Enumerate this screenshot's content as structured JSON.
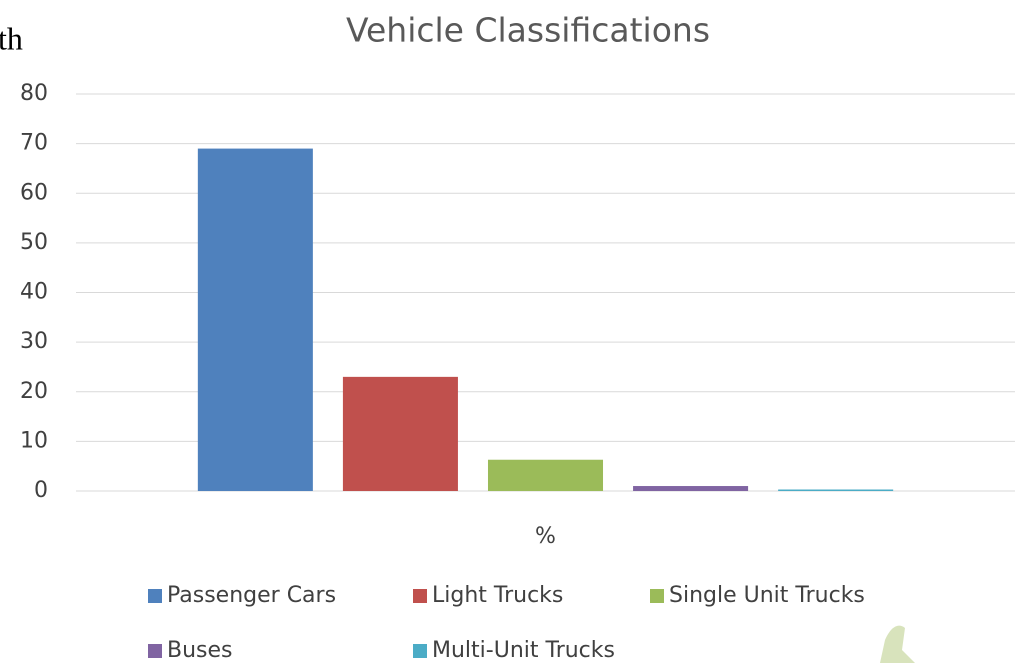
{
  "margin_text": "th",
  "chart_data": {
    "type": "bar",
    "title": "Vehicle Classifications",
    "categories": [
      "%"
    ],
    "series": [
      {
        "name": "Passenger Cars",
        "color": "#4f81bd",
        "values": [
          69
        ]
      },
      {
        "name": "Light Trucks",
        "color": "#c0504d",
        "values": [
          23
        ]
      },
      {
        "name": "Single Unit Trucks",
        "color": "#9bbb59",
        "values": [
          6.3
        ]
      },
      {
        "name": "Buses",
        "color": "#8064a2",
        "values": [
          1
        ]
      },
      {
        "name": "Multi-Unit Trucks",
        "color": "#4bacc6",
        "values": [
          0.3
        ]
      }
    ],
    "ylim": [
      0,
      80
    ],
    "yticks": [
      0,
      10,
      20,
      30,
      40,
      50,
      60,
      70,
      80
    ],
    "grid": true,
    "legend": "bottom"
  }
}
